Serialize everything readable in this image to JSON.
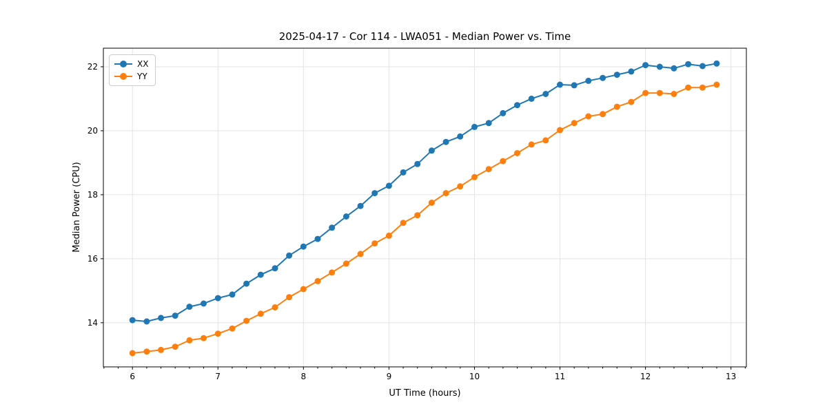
{
  "chart_data": {
    "type": "line",
    "title": "2025-04-17 - Cor 114 - LWA051 - Median Power vs. Time",
    "xlabel": "UT Time (hours)",
    "ylabel": "Median Power (CPU)",
    "xlim": [
      5.66,
      13.18
    ],
    "ylim": [
      12.62,
      22.58
    ],
    "x_ticks": [
      6,
      7,
      8,
      9,
      10,
      11,
      12,
      13
    ],
    "x_minor_step": 0.16667,
    "y_ticks": [
      14,
      16,
      18,
      20,
      22
    ],
    "grid": true,
    "legend_position": "upper left",
    "grid_color": "#e3e3e3",
    "spine_color": "#000000",
    "x": [
      6.0,
      6.167,
      6.333,
      6.5,
      6.667,
      6.833,
      7.0,
      7.167,
      7.333,
      7.5,
      7.667,
      7.833,
      8.0,
      8.167,
      8.333,
      8.5,
      8.667,
      8.833,
      9.0,
      9.167,
      9.333,
      9.5,
      9.667,
      9.833,
      10.0,
      10.167,
      10.333,
      10.5,
      10.667,
      10.833,
      11.0,
      11.167,
      11.333,
      11.5,
      11.667,
      11.833,
      12.0,
      12.167,
      12.333,
      12.5,
      12.667,
      12.833
    ],
    "series": [
      {
        "name": "XX",
        "color": "#1f77b4",
        "values": [
          14.08,
          14.04,
          14.15,
          14.22,
          14.5,
          14.6,
          14.77,
          14.88,
          15.22,
          15.5,
          15.7,
          16.1,
          16.38,
          16.62,
          16.97,
          17.32,
          17.65,
          18.05,
          18.28,
          18.7,
          18.96,
          19.38,
          19.65,
          19.82,
          20.12,
          20.24,
          20.55,
          20.8,
          21.0,
          21.15,
          21.44,
          21.42,
          21.56,
          21.65,
          21.75,
          21.85,
          22.05,
          22.0,
          21.95,
          22.08,
          22.02,
          22.1
        ]
      },
      {
        "name": "YY",
        "color": "#ff7f0e",
        "values": [
          13.05,
          13.1,
          13.15,
          13.25,
          13.45,
          13.52,
          13.66,
          13.82,
          14.06,
          14.28,
          14.48,
          14.8,
          15.05,
          15.3,
          15.57,
          15.85,
          16.15,
          16.48,
          16.72,
          17.12,
          17.36,
          17.75,
          18.05,
          18.26,
          18.55,
          18.8,
          19.05,
          19.3,
          19.57,
          19.7,
          20.02,
          20.24,
          20.45,
          20.52,
          20.75,
          20.9,
          21.18,
          21.18,
          21.15,
          21.35,
          21.35,
          21.44
        ]
      }
    ]
  }
}
